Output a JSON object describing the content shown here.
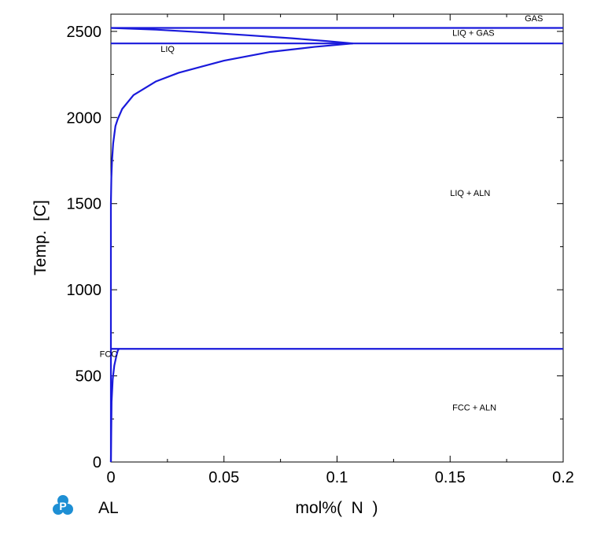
{
  "chart_data": {
    "type": "line",
    "title": "",
    "xlabel": "mol%(  N  )",
    "ylabel": "Temp.  [C]",
    "xlim": [
      0,
      0.2
    ],
    "ylim": [
      0,
      2600
    ],
    "x_ticks": [
      0,
      0.05,
      0.1,
      0.15,
      0.2
    ],
    "x_tick_labels": [
      "0",
      "0.05",
      "0.1",
      "0.15",
      "0.2"
    ],
    "y_ticks": [
      0,
      500,
      1000,
      1500,
      2000,
      2500
    ],
    "y_tick_labels": [
      "0",
      "500",
      "1000",
      "1500",
      "2000",
      "2500"
    ],
    "grid": false,
    "line_color": "#1a1adb",
    "series": [
      {
        "values": [
          [
            0,
            2520
          ],
          [
            0.2,
            2520
          ]
        ]
      },
      {
        "values": [
          [
            0,
            2430
          ],
          [
            0.2,
            2430
          ]
        ]
      },
      {
        "values": [
          [
            0,
            657
          ],
          [
            0.2,
            657
          ]
        ]
      },
      {
        "values": [
          [
            0,
            2520
          ],
          [
            0.02,
            2510
          ],
          [
            0.04,
            2495
          ],
          [
            0.06,
            2478
          ],
          [
            0.08,
            2460
          ],
          [
            0.095,
            2444
          ],
          [
            0.107,
            2430
          ]
        ]
      },
      {
        "values": [
          [
            0,
            1500
          ],
          [
            0.0002,
            1650
          ],
          [
            0.0005,
            1750
          ],
          [
            0.001,
            1850
          ],
          [
            0.0015,
            1900
          ],
          [
            0.002,
            1950
          ],
          [
            0.003,
            1990
          ],
          [
            0.005,
            2050
          ],
          [
            0.01,
            2130
          ],
          [
            0.02,
            2210
          ],
          [
            0.03,
            2260
          ],
          [
            0.05,
            2330
          ],
          [
            0.07,
            2380
          ],
          [
            0.09,
            2410
          ],
          [
            0.107,
            2430
          ]
        ]
      },
      {
        "values": [
          [
            0,
            0
          ],
          [
            0.0003,
            350
          ],
          [
            0.0008,
            480
          ],
          [
            0.0015,
            560
          ],
          [
            0.0025,
            620
          ],
          [
            0.003,
            645
          ],
          [
            0.0035,
            657
          ]
        ]
      },
      {
        "values": [
          [
            0,
            0
          ],
          [
            0,
            1500
          ]
        ]
      }
    ],
    "annotations": [
      {
        "text": "GAS",
        "x": 0.183,
        "y": 2560
      },
      {
        "text": "LIQ + GAS",
        "x": 0.151,
        "y": 2475
      },
      {
        "text": "LIQ",
        "x": 0.022,
        "y": 2380
      },
      {
        "text": "LIQ + ALN",
        "x": 0.15,
        "y": 1545
      },
      {
        "text": "FCC",
        "x": -0.005,
        "y": 610
      },
      {
        "text": "FCC + ALN",
        "x": 0.151,
        "y": 300
      }
    ]
  },
  "footer": {
    "logo_icon": "p-logo-icon",
    "logo_color": "#1e8fd4",
    "system_label": "AL",
    "x_axis_label": "mol%(  N  )"
  }
}
